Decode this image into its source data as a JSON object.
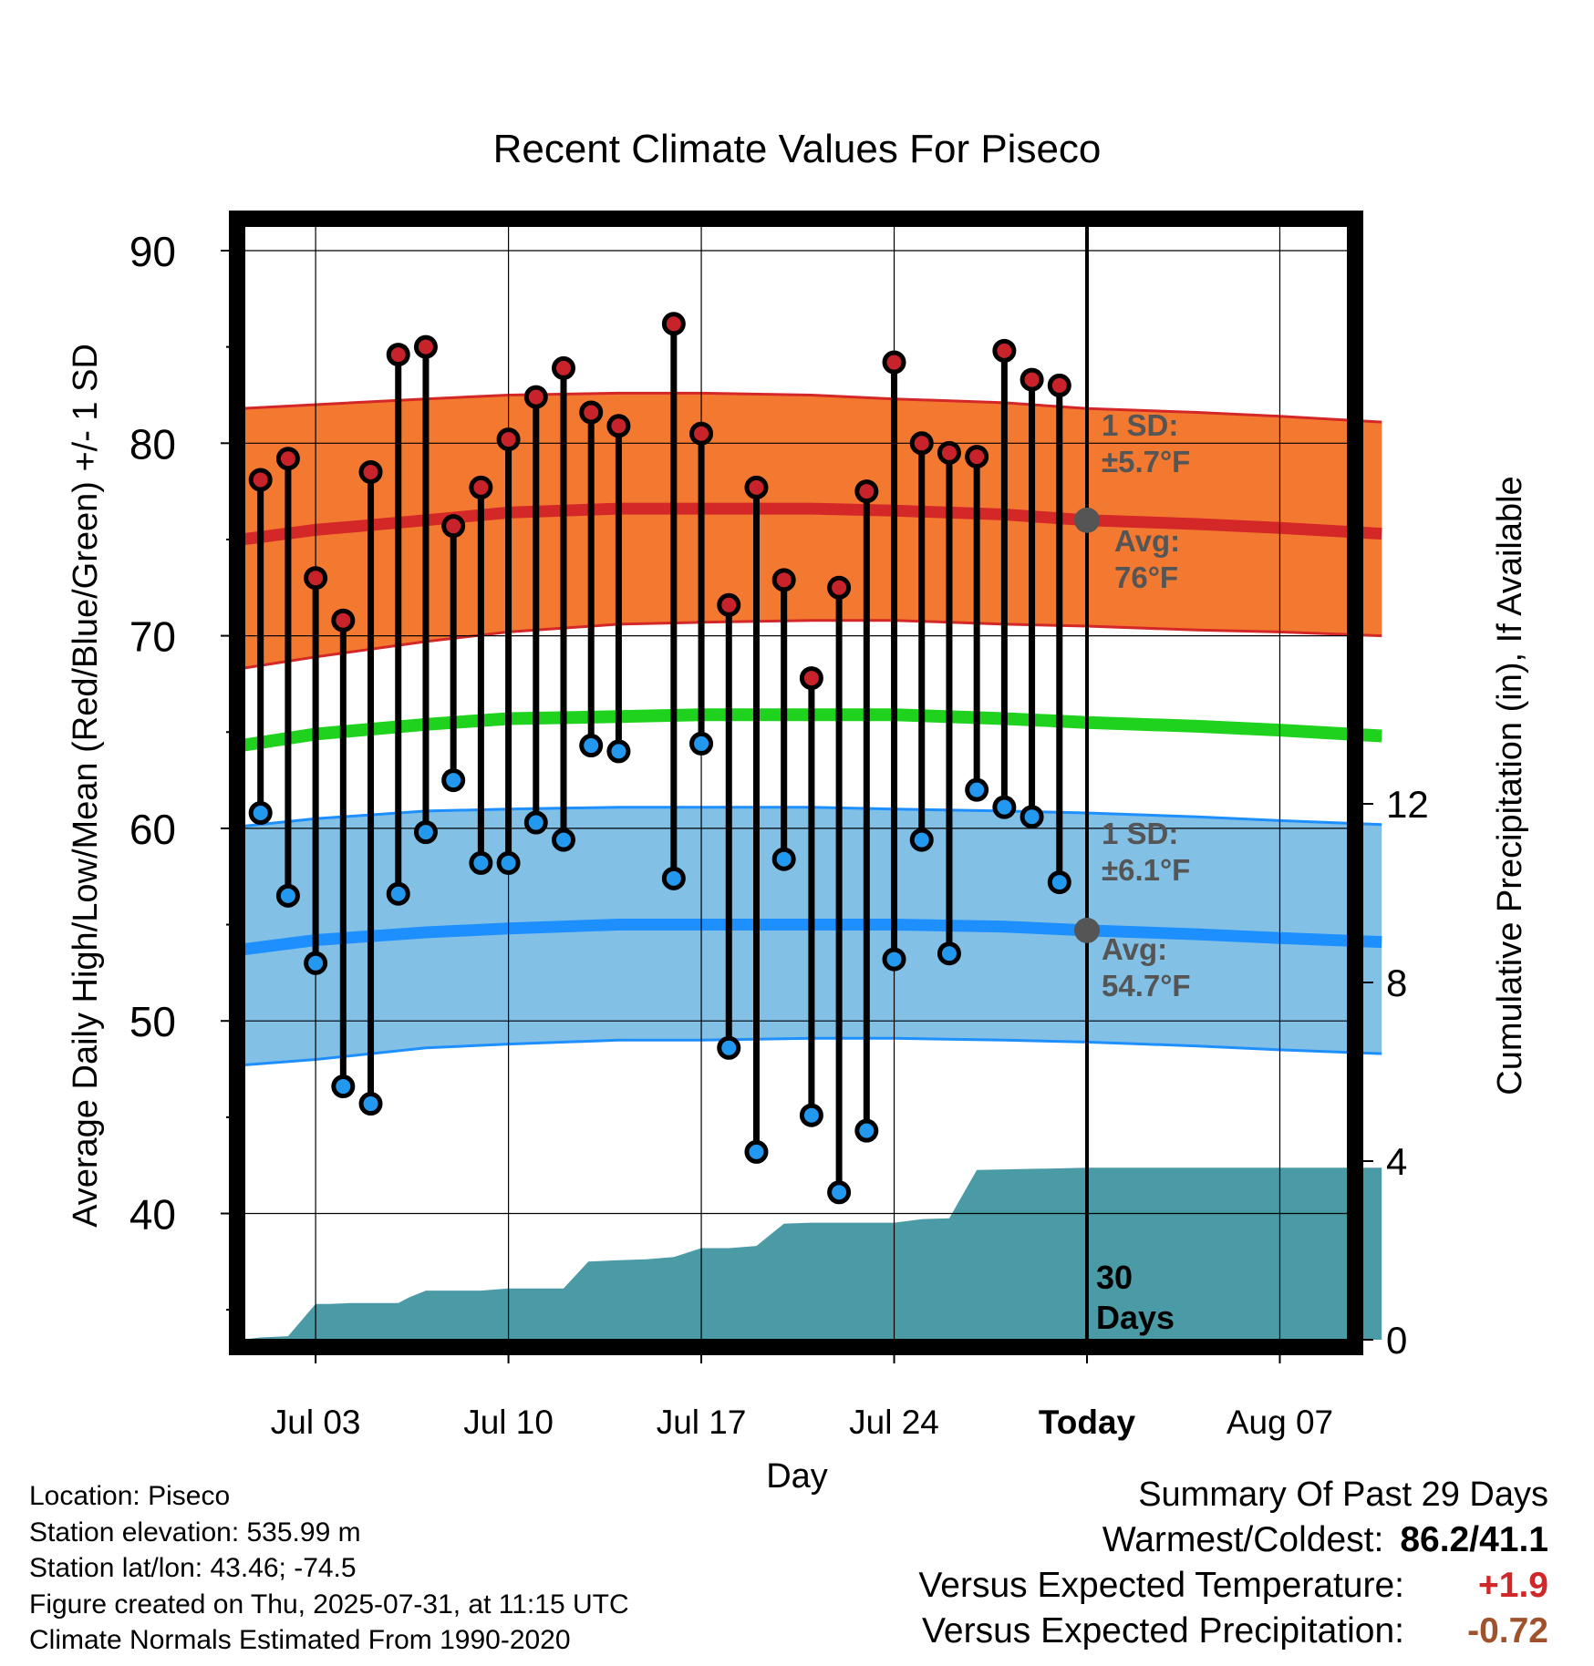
{
  "chart_data": {
    "type": "line",
    "title": "Recent Climate Values For Piseco",
    "xlabel": "Day",
    "ylabel": "Average Daily High/Low/Mean (Red/Blue/Green) +/- 1 SD",
    "y2label": "Cumulative Precipitation (in), If Available",
    "ylim": [
      33.5,
      91
    ],
    "y2lim": [
      0,
      24.2
    ],
    "yticks": [
      40,
      50,
      60,
      70,
      80,
      90
    ],
    "y2ticks": [
      0,
      4,
      8,
      12
    ],
    "x_tick_labels": [
      {
        "day": 3,
        "label": "Jul 03"
      },
      {
        "day": 10,
        "label": "Jul 10"
      },
      {
        "day": 17,
        "label": "Jul 17"
      },
      {
        "day": 24,
        "label": "Jul 24"
      },
      {
        "day": 31,
        "label": "Today"
      },
      {
        "day": 38,
        "label": "Aug 07"
      }
    ],
    "xlim": [
      0.3,
      41.7
    ],
    "today_day": 31,
    "today_label": "30 Days",
    "colors": {
      "high_band": "#f47930",
      "high_line": "#d42828",
      "low_band": "#82c0e6",
      "low_line": "#1e8fff",
      "mean_line": "#1ed21e",
      "precip": "#4a9ba6",
      "high_marker": "#c8232b",
      "low_marker": "#2299ee",
      "summary_red": "#d02828",
      "summary_brown": "#a0522d",
      "annot": "#555555"
    },
    "normals": {
      "x": [
        0.3,
        3,
        7,
        10,
        14,
        17,
        21,
        24,
        28,
        31,
        35,
        38,
        41.7
      ],
      "high_avg": [
        75.0,
        75.5,
        76.0,
        76.4,
        76.6,
        76.6,
        76.6,
        76.5,
        76.3,
        76.0,
        75.8,
        75.6,
        75.3
      ],
      "high_upper": [
        81.8,
        82.0,
        82.3,
        82.5,
        82.6,
        82.6,
        82.5,
        82.3,
        82.1,
        81.8,
        81.6,
        81.4,
        81.1
      ],
      "high_lower": [
        68.3,
        68.9,
        69.7,
        70.2,
        70.6,
        70.7,
        70.8,
        70.8,
        70.6,
        70.5,
        70.3,
        70.2,
        70.0
      ],
      "mean": [
        64.3,
        64.9,
        65.4,
        65.7,
        65.8,
        65.9,
        65.9,
        65.9,
        65.7,
        65.5,
        65.3,
        65.1,
        64.8
      ],
      "low_avg": [
        53.7,
        54.2,
        54.6,
        54.8,
        55.0,
        55.0,
        55.0,
        55.0,
        54.9,
        54.7,
        54.5,
        54.3,
        54.1
      ],
      "low_upper": [
        60.1,
        60.5,
        60.9,
        61.0,
        61.1,
        61.1,
        61.1,
        61.0,
        60.9,
        60.8,
        60.6,
        60.4,
        60.2
      ],
      "low_lower": [
        47.7,
        48.0,
        48.6,
        48.8,
        49.0,
        49.0,
        49.1,
        49.1,
        49.0,
        48.9,
        48.7,
        48.5,
        48.3
      ]
    },
    "series": [
      {
        "name": "High",
        "x": [
          1,
          2,
          3,
          4,
          5,
          6,
          7,
          8,
          9,
          10,
          11,
          12,
          13,
          14,
          16,
          17,
          18,
          19,
          20,
          21,
          22,
          23,
          24,
          25,
          26,
          27,
          28,
          29,
          30
        ],
        "values": [
          78.1,
          79.2,
          73.0,
          70.8,
          78.5,
          84.6,
          85.0,
          75.7,
          77.7,
          80.2,
          82.4,
          83.9,
          81.6,
          80.9,
          86.2,
          80.5,
          71.6,
          77.7,
          72.9,
          67.8,
          72.5,
          77.5,
          84.2,
          80.0,
          79.5,
          79.3,
          84.8,
          83.3,
          83.0
        ]
      },
      {
        "name": "Low",
        "x": [
          1,
          2,
          3,
          4,
          5,
          6,
          7,
          8,
          9,
          10,
          11,
          12,
          13,
          14,
          16,
          17,
          18,
          19,
          20,
          21,
          22,
          23,
          24,
          25,
          26,
          27,
          28,
          29,
          30
        ],
        "values": [
          60.8,
          56.5,
          53.0,
          46.6,
          45.7,
          56.6,
          59.8,
          62.5,
          58.2,
          58.2,
          60.3,
          59.4,
          64.3,
          64.0,
          57.4,
          64.4,
          48.6,
          43.2,
          58.4,
          45.1,
          41.1,
          44.3,
          53.2,
          59.4,
          53.5,
          62.0,
          61.1,
          60.6,
          57.2
        ]
      },
      {
        "name": "Cumulative Precipitation",
        "x": [
          0.3,
          1.0,
          2.0,
          3.0,
          3.5,
          4.2,
          5.0,
          6.0,
          6.4,
          7.0,
          8.0,
          9.0,
          10.0,
          11.0,
          12.0,
          12.9,
          14.0,
          15.0,
          16.0,
          17.0,
          18.0,
          19.0,
          20.0,
          21.0,
          22.0,
          23.0,
          24.0,
          25.0,
          26.0,
          27.0,
          31.0,
          41.7
        ],
        "values": [
          0,
          0.05,
          0.08,
          0.8,
          0.8,
          0.82,
          0.82,
          0.82,
          0.95,
          1.1,
          1.1,
          1.1,
          1.15,
          1.15,
          1.15,
          1.75,
          1.78,
          1.8,
          1.85,
          2.05,
          2.05,
          2.1,
          2.6,
          2.62,
          2.62,
          2.62,
          2.62,
          2.7,
          2.72,
          3.8,
          3.85,
          3.85
        ]
      }
    ],
    "annotations": {
      "high_sd": [
        "1 SD:",
        "±5.7°F"
      ],
      "high_avg": [
        "Avg:",
        "76°F"
      ],
      "low_sd": [
        "1 SD:",
        "±6.1°F"
      ],
      "low_avg": [
        "Avg:",
        "54.7°F"
      ],
      "today_high_avg": 76.0,
      "today_low_avg": 54.7
    }
  },
  "footer": {
    "location": "Location: Piseco",
    "elevation": "Station elevation: 535.99 m",
    "latlon": "Station lat/lon: 43.46; -74.5",
    "created": "Figure created on Thu, 2025-07-31, at 11:15 UTC",
    "normals": "Climate Normals Estimated From 1990-2020"
  },
  "summary": {
    "title": "Summary Of Past 29 Days",
    "warm_cold_label": "Warmest/Coldest:",
    "warm_cold_value": "86.2/41.1",
    "temp_label": "Versus Expected Temperature:",
    "temp_value": "+1.9",
    "precip_label": "Versus Expected Precipitation:",
    "precip_value": "-0.72"
  }
}
